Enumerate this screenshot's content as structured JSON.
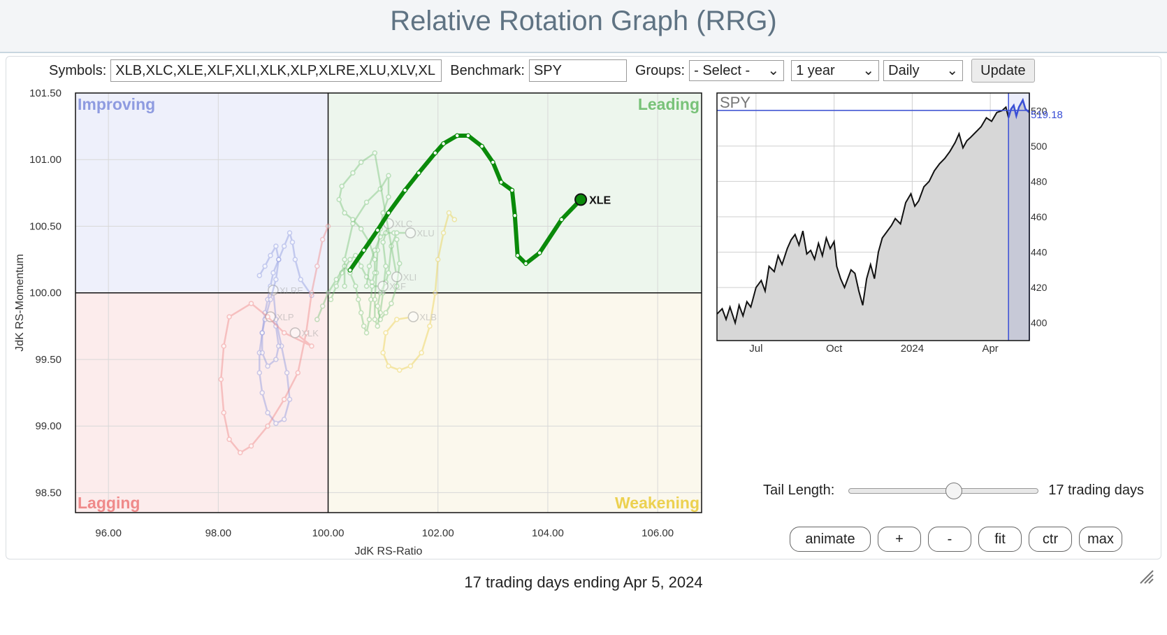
{
  "title": "Relative Rotation Graph (RRG)",
  "controls": {
    "symbols_label": "Symbols:",
    "symbols_value": "XLB,XLC,XLE,XLF,XLI,XLK,XLP,XLRE,XLU,XLV,XL",
    "benchmark_label": "Benchmark:",
    "benchmark_value": "SPY",
    "groups_label": "Groups:",
    "groups_value": "- Select -",
    "period_value": "1 year",
    "interval_value": "Daily",
    "update_label": "Update"
  },
  "tail": {
    "label": "Tail Length:",
    "value_text": "17 trading days",
    "slider_fraction": 0.55
  },
  "buttons": {
    "animate": "animate",
    "zoom_in": "+",
    "zoom_out": "-",
    "fit": "fit",
    "ctr": "ctr",
    "max": "max"
  },
  "caption": "17 trading days ending Apr 5, 2024",
  "chart_data": [
    {
      "type": "scatter",
      "xlabel": "JdK RS-Ratio",
      "ylabel": "JdK RS-Momentum",
      "xlim": [
        95.4,
        106.8
      ],
      "ylim": [
        98.35,
        101.5
      ],
      "xticks": [
        "96.00",
        "98.00",
        "100.00",
        "102.00",
        "104.00",
        "106.00"
      ],
      "xtick_values": [
        96,
        98,
        100,
        102,
        104,
        106
      ],
      "yticks": [
        "101.50",
        "101.00",
        "100.50",
        "100.00",
        "99.50",
        "99.00",
        "98.50"
      ],
      "ytick_values": [
        101.5,
        101.0,
        100.5,
        100.0,
        99.5,
        99.0,
        98.5
      ],
      "center": [
        100,
        100
      ],
      "quadrants": {
        "improving": {
          "label": "Improving",
          "fill": "#eef0fb",
          "text": "#8e9be0"
        },
        "leading": {
          "label": "Leading",
          "fill": "#edf6ed",
          "text": "#78c278"
        },
        "lagging": {
          "label": "Lagging",
          "fill": "#fcecec",
          "text": "#ef8a8a"
        },
        "weakening": {
          "label": "Weakening",
          "fill": "#fbf8ed",
          "text": "#ecd150"
        }
      },
      "highlighted": {
        "name": "XLE",
        "color": "#0a8a0a",
        "points": [
          [
            100.4,
            100.17
          ],
          [
            100.65,
            100.32
          ],
          [
            100.9,
            100.47
          ],
          [
            101.1,
            100.6
          ],
          [
            101.4,
            100.77
          ],
          [
            101.65,
            100.9
          ],
          [
            101.95,
            101.05
          ],
          [
            102.1,
            101.12
          ],
          [
            102.35,
            101.18
          ],
          [
            102.55,
            101.18
          ],
          [
            102.8,
            101.1
          ],
          [
            103.0,
            100.98
          ],
          [
            103.15,
            100.83
          ],
          [
            103.35,
            100.77
          ],
          [
            103.4,
            100.58
          ],
          [
            103.45,
            100.28
          ],
          [
            103.6,
            100.22
          ],
          [
            103.85,
            100.3
          ],
          [
            104.25,
            100.55
          ],
          [
            104.6,
            100.7
          ]
        ]
      },
      "others": [
        {
          "name": "XLC",
          "color": "#7cc47c",
          "points": [
            [
              100.3,
              100.05
            ],
            [
              100.3,
              100.25
            ],
            [
              100.45,
              100.52
            ],
            [
              100.7,
              100.68
            ],
            [
              100.95,
              100.78
            ],
            [
              101.1,
              100.88
            ],
            [
              101.1,
              100.72
            ],
            [
              101.0,
              100.6
            ],
            [
              100.95,
              100.48
            ],
            [
              100.9,
              100.32
            ],
            [
              100.88,
              100.15
            ],
            [
              100.85,
              99.95
            ],
            [
              100.85,
              99.8
            ],
            [
              100.9,
              99.75
            ],
            [
              100.95,
              99.85
            ],
            [
              101.0,
              100.0
            ],
            [
              101.05,
              100.2
            ],
            [
              101.0,
              100.38
            ],
            [
              101.1,
              100.52
            ]
          ]
        },
        {
          "name": "XLU",
          "color": "#7cc47c",
          "points": [
            [
              100.7,
              100.05
            ],
            [
              100.75,
              100.2
            ],
            [
              100.85,
              100.32
            ],
            [
              100.95,
              100.42
            ],
            [
              101.05,
              100.45
            ],
            [
              101.2,
              100.45
            ],
            [
              101.25,
              100.4
            ],
            [
              101.3,
              100.22
            ],
            [
              101.25,
              100.05
            ],
            [
              101.15,
              99.92
            ],
            [
              101.05,
              99.85
            ],
            [
              100.95,
              99.8
            ],
            [
              100.9,
              99.9
            ],
            [
              100.95,
              100.0
            ],
            [
              101.05,
              100.08
            ],
            [
              101.1,
              100.15
            ],
            [
              101.15,
              100.35
            ],
            [
              101.25,
              100.45
            ],
            [
              101.5,
              100.45
            ]
          ]
        },
        {
          "name": "XLI",
          "color": "#7cc47c",
          "points": [
            [
              100.05,
              99.95
            ],
            [
              100.15,
              100.05
            ],
            [
              100.25,
              100.15
            ],
            [
              100.4,
              100.25
            ],
            [
              100.5,
              100.28
            ],
            [
              100.6,
              100.2
            ],
            [
              100.7,
              100.12
            ],
            [
              100.8,
              100.08
            ],
            [
              100.85,
              100.15
            ],
            [
              100.85,
              100.25
            ],
            [
              100.75,
              100.38
            ],
            [
              100.6,
              100.48
            ],
            [
              100.45,
              100.55
            ],
            [
              100.3,
              100.6
            ],
            [
              100.2,
              100.7
            ],
            [
              100.25,
              100.8
            ],
            [
              100.45,
              100.9
            ],
            [
              100.6,
              100.98
            ],
            [
              100.85,
              101.05
            ],
            [
              101.25,
              100.12
            ]
          ]
        },
        {
          "name": "XLF",
          "color": "#7cc47c",
          "points": [
            [
              99.8,
              99.8
            ],
            [
              99.9,
              99.9
            ],
            [
              100.0,
              100.0
            ],
            [
              100.15,
              100.1
            ],
            [
              100.3,
              100.2
            ],
            [
              100.4,
              100.15
            ],
            [
              100.5,
              100.05
            ],
            [
              100.55,
              99.95
            ],
            [
              100.6,
              99.85
            ],
            [
              100.65,
              99.75
            ],
            [
              100.7,
              99.7
            ],
            [
              100.75,
              99.8
            ],
            [
              100.78,
              99.95
            ],
            [
              100.8,
              100.05
            ],
            [
              101.0,
              100.05
            ]
          ]
        },
        {
          "name": "XLB",
          "color": "#ecd150",
          "points": [
            [
              102.3,
              100.55
            ],
            [
              102.2,
              100.6
            ],
            [
              102.1,
              100.45
            ],
            [
              102.0,
              100.25
            ],
            [
              101.95,
              100.0
            ],
            [
              101.85,
              99.75
            ],
            [
              101.7,
              99.55
            ],
            [
              101.5,
              99.45
            ],
            [
              101.3,
              99.42
            ],
            [
              101.1,
              99.45
            ],
            [
              101.0,
              99.55
            ],
            [
              101.05,
              99.7
            ],
            [
              101.25,
              99.8
            ],
            [
              101.55,
              99.82
            ]
          ]
        },
        {
          "name": "XLRE",
          "color": "#8f9ae0",
          "points": [
            [
              99.7,
              99.98
            ],
            [
              99.5,
              100.1
            ],
            [
              99.4,
              100.25
            ],
            [
              99.35,
              100.38
            ],
            [
              99.3,
              100.45
            ],
            [
              99.2,
              100.35
            ],
            [
              99.1,
              100.25
            ],
            [
              99.0,
              100.15
            ],
            [
              98.95,
              100.05
            ],
            [
              98.9,
              99.95
            ],
            [
              98.85,
              99.85
            ],
            [
              98.8,
              99.7
            ],
            [
              98.75,
              99.55
            ],
            [
              98.75,
              99.4
            ],
            [
              98.8,
              99.25
            ],
            [
              98.9,
              99.1
            ],
            [
              99.05,
              99.02
            ],
            [
              99.2,
              99.05
            ],
            [
              99.3,
              99.2
            ],
            [
              99.25,
              99.4
            ],
            [
              99.15,
              99.6
            ],
            [
              99.05,
              99.8
            ],
            [
              99.0,
              100.02
            ]
          ]
        },
        {
          "name": "XLP",
          "color": "#8f9ae0",
          "points": [
            [
              98.75,
              100.13
            ],
            [
              98.85,
              100.2
            ],
            [
              98.95,
              100.28
            ],
            [
              99.05,
              100.35
            ],
            [
              99.1,
              100.25
            ],
            [
              99.05,
              100.1
            ],
            [
              98.95,
              99.95
            ],
            [
              98.85,
              99.8
            ],
            [
              98.8,
              99.7
            ],
            [
              98.8,
              99.55
            ],
            [
              98.9,
              99.45
            ],
            [
              99.05,
              99.5
            ],
            [
              99.1,
              99.6
            ],
            [
              99.05,
              99.75
            ],
            [
              98.95,
              99.82
            ]
          ]
        },
        {
          "name": "XLK",
          "color": "#ef8a8a",
          "points": [
            [
              100.0,
              100.5
            ],
            [
              99.9,
              100.4
            ],
            [
              99.8,
              100.2
            ],
            [
              99.7,
              100.0
            ],
            [
              99.6,
              99.7
            ],
            [
              99.45,
              99.4
            ],
            [
              99.2,
              99.2
            ],
            [
              98.9,
              99.0
            ],
            [
              98.6,
              98.85
            ],
            [
              98.4,
              98.8
            ],
            [
              98.2,
              98.9
            ],
            [
              98.1,
              99.1
            ],
            [
              98.05,
              99.35
            ],
            [
              98.1,
              99.6
            ],
            [
              98.2,
              99.82
            ],
            [
              98.6,
              99.92
            ],
            [
              98.9,
              99.82
            ],
            [
              99.2,
              99.7
            ],
            [
              99.7,
              99.6
            ],
            [
              99.4,
              99.7
            ]
          ]
        }
      ]
    },
    {
      "type": "area",
      "title": "SPY",
      "last_value_label": "519.18",
      "ylim": [
        390,
        530
      ],
      "yticks": [
        "400",
        "420",
        "440",
        "460",
        "480",
        "500",
        "520"
      ],
      "ytick_values": [
        400,
        420,
        440,
        460,
        480,
        500,
        520
      ],
      "xticks": [
        "Jul",
        "Oct",
        "2024",
        "Apr"
      ],
      "xtick_positions": [
        1.5,
        4.5,
        7.5,
        10.5
      ],
      "x_range": [
        0,
        12
      ],
      "highlight_start": 11.2,
      "line_color": "#111111",
      "highlight_color": "#3a4fd6",
      "values": [
        [
          0,
          405
        ],
        [
          0.2,
          408
        ],
        [
          0.35,
          402
        ],
        [
          0.5,
          409
        ],
        [
          0.7,
          400
        ],
        [
          0.85,
          410
        ],
        [
          1.0,
          404
        ],
        [
          1.15,
          412
        ],
        [
          1.3,
          409
        ],
        [
          1.5,
          420
        ],
        [
          1.7,
          424
        ],
        [
          1.85,
          418
        ],
        [
          2.0,
          432
        ],
        [
          2.2,
          429
        ],
        [
          2.35,
          438
        ],
        [
          2.5,
          433
        ],
        [
          2.7,
          442
        ],
        [
          2.85,
          447
        ],
        [
          3.0,
          450
        ],
        [
          3.15,
          444
        ],
        [
          3.3,
          452
        ],
        [
          3.45,
          439
        ],
        [
          3.6,
          441
        ],
        [
          3.75,
          436
        ],
        [
          3.9,
          445
        ],
        [
          4.05,
          438
        ],
        [
          4.2,
          448
        ],
        [
          4.35,
          442
        ],
        [
          4.5,
          446
        ],
        [
          4.6,
          432
        ],
        [
          4.75,
          425
        ],
        [
          4.9,
          420
        ],
        [
          5.0,
          424
        ],
        [
          5.15,
          430
        ],
        [
          5.3,
          428
        ],
        [
          5.45,
          418
        ],
        [
          5.6,
          410
        ],
        [
          5.75,
          425
        ],
        [
          5.9,
          433
        ],
        [
          6.05,
          425
        ],
        [
          6.2,
          440
        ],
        [
          6.35,
          448
        ],
        [
          6.5,
          451
        ],
        [
          6.7,
          455
        ],
        [
          6.85,
          459
        ],
        [
          7.05,
          456
        ],
        [
          7.25,
          468
        ],
        [
          7.45,
          473
        ],
        [
          7.6,
          466
        ],
        [
          7.75,
          469
        ],
        [
          7.95,
          477
        ],
        [
          8.15,
          480
        ],
        [
          8.35,
          486
        ],
        [
          8.55,
          490
        ],
        [
          8.75,
          493
        ],
        [
          8.95,
          497
        ],
        [
          9.15,
          502
        ],
        [
          9.3,
          507
        ],
        [
          9.45,
          499
        ],
        [
          9.6,
          503
        ],
        [
          9.75,
          505
        ],
        [
          9.95,
          508
        ],
        [
          10.15,
          511
        ],
        [
          10.35,
          516
        ],
        [
          10.55,
          514
        ],
        [
          10.75,
          519
        ],
        [
          10.95,
          520
        ],
        [
          11.1,
          522
        ],
        [
          11.2,
          516
        ],
        [
          11.3,
          521
        ],
        [
          11.4,
          523
        ],
        [
          11.5,
          517
        ],
        [
          11.6,
          522
        ],
        [
          11.75,
          526
        ],
        [
          11.85,
          521
        ],
        [
          12.0,
          519
        ]
      ]
    }
  ]
}
